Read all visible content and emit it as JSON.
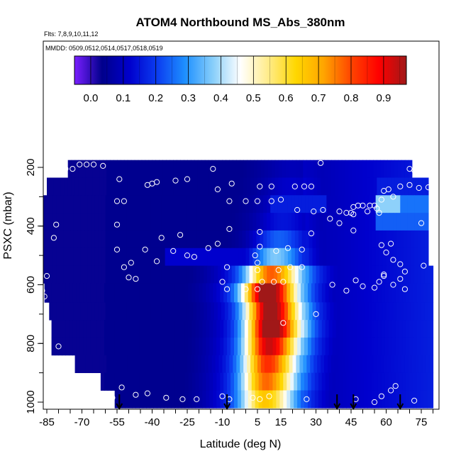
{
  "chart_data": {
    "type": "heatmap",
    "title": "ATOM4 Northbound MS_Abs_380nm",
    "flights_label": "Flts: 7,8,9,10,11,12",
    "dates_label": "MMDD: 0509,0512,0514,0517,0518,0519",
    "xlabel": "Latitude (deg N)",
    "ylabel": "PSXC (mbar)",
    "x_ticks": [
      "-85",
      "-70",
      "-55",
      "-40",
      "-25",
      "-10",
      "5",
      "15",
      "30",
      "45",
      "60",
      "75"
    ],
    "x_tick_values": [
      -85,
      -70,
      -55,
      -40,
      -25,
      -10,
      5,
      15,
      30,
      45,
      60,
      75
    ],
    "y_ticks": [
      "200",
      "400",
      "600",
      "800",
      "1000"
    ],
    "y_tick_values": [
      200,
      400,
      600,
      800,
      1000
    ],
    "xlim": [
      -86,
      81
    ],
    "ylim": [
      1020,
      100
    ],
    "colorbar": {
      "ticks": [
        "0.0",
        "0.1",
        "0.2",
        "0.3",
        "0.4",
        "0.5",
        "0.6",
        "0.7",
        "0.8",
        "0.9"
      ],
      "tick_values": [
        0.0,
        0.1,
        0.2,
        0.3,
        0.4,
        0.5,
        0.6,
        0.7,
        0.8,
        0.9
      ],
      "range": [
        -0.05,
        0.97
      ],
      "colors": [
        "#7a1fff",
        "#00008b",
        "#0000cd",
        "#0b3df0",
        "#1e90ff",
        "#87cefa",
        "#ffffff",
        "#ffec8b",
        "#ffd700",
        "#ffa500",
        "#ff4500",
        "#ff0000",
        "#a01818"
      ]
    },
    "pressure_bands": [
      {
        "p_top": 175,
        "p_bot": 235,
        "lat_min": -76,
        "lat_max": 71
      },
      {
        "p_top": 235,
        "p_bot": 295,
        "lat_min": -85,
        "lat_max": 78
      },
      {
        "p_top": 295,
        "p_bot": 355,
        "lat_min": -87,
        "lat_max": 78
      },
      {
        "p_top": 355,
        "p_bot": 415,
        "lat_min": -87,
        "lat_max": 78
      },
      {
        "p_top": 415,
        "p_bot": 475,
        "lat_min": -87,
        "lat_max": 78
      },
      {
        "p_top": 475,
        "p_bot": 535,
        "lat_min": -87,
        "lat_max": 78
      },
      {
        "p_top": 535,
        "p_bot": 595,
        "lat_min": -87,
        "lat_max": 80
      },
      {
        "p_top": 595,
        "p_bot": 660,
        "lat_min": -86,
        "lat_max": 80
      },
      {
        "p_top": 660,
        "p_bot": 720,
        "lat_min": -84,
        "lat_max": 80
      },
      {
        "p_top": 720,
        "p_bot": 780,
        "lat_min": -83,
        "lat_max": 80
      },
      {
        "p_top": 780,
        "p_bot": 840,
        "lat_min": -83,
        "lat_max": 80
      },
      {
        "p_top": 840,
        "p_bot": 900,
        "lat_min": -73,
        "lat_max": 80
      },
      {
        "p_top": 900,
        "p_bot": 960,
        "lat_min": -62,
        "lat_max": 80
      },
      {
        "p_top": 960,
        "p_bot": 1020,
        "lat_min": -56,
        "lat_max": 80
      }
    ],
    "plume": {
      "center_lat": [
        [
          200,
          20
        ],
        [
          300,
          18
        ],
        [
          450,
          14
        ],
        [
          560,
          11
        ],
        [
          620,
          9
        ],
        [
          720,
          11
        ],
        [
          800,
          10
        ],
        [
          900,
          9
        ],
        [
          1000,
          8
        ]
      ],
      "peak_value": [
        [
          200,
          0.02
        ],
        [
          300,
          0.06
        ],
        [
          400,
          0.08
        ],
        [
          500,
          0.28
        ],
        [
          560,
          0.5
        ],
        [
          600,
          0.82
        ],
        [
          650,
          0.78
        ],
        [
          700,
          0.76
        ],
        [
          750,
          0.8
        ],
        [
          800,
          0.72
        ],
        [
          850,
          0.6
        ],
        [
          900,
          0.58
        ],
        [
          950,
          0.5
        ],
        [
          1000,
          0.4
        ]
      ]
    },
    "bright_patches": [
      {
        "p_top": 295,
        "p_bot": 355,
        "lat_min": 56,
        "lat_max": 66,
        "value": 0.38
      },
      {
        "p_top": 295,
        "p_bot": 355,
        "lat_min": 66,
        "lat_max": 79,
        "value": 0.26
      },
      {
        "p_top": 355,
        "p_bot": 415,
        "lat_min": 56,
        "lat_max": 79,
        "value": 0.24
      },
      {
        "p_top": 235,
        "p_bot": 295,
        "lat_min": 56,
        "lat_max": 78,
        "value": 0.16
      },
      {
        "p_top": 475,
        "p_bot": 535,
        "lat_min": -35,
        "lat_max": 10,
        "value": 0.12
      },
      {
        "p_top": 295,
        "p_bot": 355,
        "lat_min": 10,
        "lat_max": 35,
        "value": 0.16
      }
    ],
    "sample_points": [
      [
        -71,
        190
      ],
      [
        -68,
        190
      ],
      [
        -65,
        190
      ],
      [
        -61,
        195
      ],
      [
        -74,
        205
      ],
      [
        -77,
        205
      ],
      [
        -86,
        215
      ],
      [
        -84,
        215
      ],
      [
        -54,
        240
      ],
      [
        -40,
        255
      ],
      [
        -38,
        250
      ],
      [
        -30,
        245
      ],
      [
        -14,
        205
      ],
      [
        -25,
        240
      ],
      [
        -42,
        260
      ],
      [
        32,
        185
      ],
      [
        70,
        205
      ],
      [
        72,
        210
      ],
      [
        75,
        215
      ],
      [
        -12,
        275
      ],
      [
        -6,
        255
      ],
      [
        6,
        265
      ],
      [
        11,
        265
      ],
      [
        21,
        265
      ],
      [
        25,
        265
      ],
      [
        28,
        265
      ],
      [
        66,
        265
      ],
      [
        70,
        260
      ],
      [
        74,
        270
      ],
      [
        78,
        268
      ],
      [
        59,
        280
      ],
      [
        61,
        275
      ],
      [
        -52,
        315
      ],
      [
        -55,
        315
      ],
      [
        -7,
        315
      ],
      [
        0,
        315
      ],
      [
        5,
        315
      ],
      [
        11,
        315
      ],
      [
        15,
        310
      ],
      [
        -7,
        410
      ],
      [
        22,
        345
      ],
      [
        29,
        350
      ],
      [
        33,
        345
      ],
      [
        40,
        350
      ],
      [
        43,
        355
      ],
      [
        45,
        355
      ],
      [
        46,
        335
      ],
      [
        48,
        330
      ],
      [
        50,
        330
      ],
      [
        53,
        330
      ],
      [
        55,
        330
      ],
      [
        52,
        350
      ],
      [
        56,
        340
      ],
      [
        57,
        355
      ],
      [
        40,
        390
      ],
      [
        36,
        375
      ],
      [
        46,
        360
      ],
      [
        58,
        310
      ],
      [
        63,
        300
      ],
      [
        75,
        390
      ],
      [
        -81,
        395
      ],
      [
        -82,
        440
      ],
      [
        -55,
        395
      ],
      [
        -36,
        440
      ],
      [
        -28,
        430
      ],
      [
        -38,
        520
      ],
      [
        -43,
        480
      ],
      [
        -31,
        485
      ],
      [
        -22,
        505
      ],
      [
        -25,
        500
      ],
      [
        -16,
        475
      ],
      [
        -12,
        460
      ],
      [
        -8,
        540
      ],
      [
        -55,
        480
      ],
      [
        -49,
        525
      ],
      [
        -47,
        580
      ],
      [
        -50,
        575
      ],
      [
        -52,
        540
      ],
      [
        6,
        420
      ],
      [
        28,
        425
      ],
      [
        46,
        415
      ],
      [
        6,
        470
      ],
      [
        4,
        500
      ],
      [
        13,
        485
      ],
      [
        18,
        475
      ],
      [
        24,
        480
      ],
      [
        5,
        525
      ],
      [
        5,
        550
      ],
      [
        19,
        540
      ],
      [
        14,
        550
      ],
      [
        24,
        540
      ],
      [
        58,
        465
      ],
      [
        62,
        460
      ],
      [
        60,
        490
      ],
      [
        63,
        515
      ],
      [
        66,
        530
      ],
      [
        76,
        535
      ],
      [
        68,
        555
      ],
      [
        59,
        565
      ],
      [
        59,
        570
      ],
      [
        66,
        580
      ],
      [
        -10,
        590
      ],
      [
        -8,
        615
      ],
      [
        0,
        615
      ],
      [
        5,
        615
      ],
      [
        7,
        590
      ],
      [
        12,
        590
      ],
      [
        16,
        590
      ],
      [
        37,
        600
      ],
      [
        43,
        620
      ],
      [
        47,
        585
      ],
      [
        50,
        605
      ],
      [
        55,
        610
      ],
      [
        57,
        590
      ],
      [
        63,
        600
      ],
      [
        68,
        615
      ],
      [
        -87,
        620
      ],
      [
        30,
        700
      ],
      [
        16,
        730
      ],
      [
        -80,
        810
      ],
      [
        -53,
        950
      ],
      [
        -57,
        985
      ],
      [
        -47,
        975
      ],
      [
        -42,
        970
      ],
      [
        -34,
        985
      ],
      [
        -27,
        990
      ],
      [
        -21,
        990
      ],
      [
        -10,
        980
      ],
      [
        -7,
        990
      ],
      [
        3,
        985
      ],
      [
        6,
        990
      ],
      [
        10,
        980
      ],
      [
        26,
        990
      ],
      [
        47,
        990
      ],
      [
        55,
        1000
      ],
      [
        58,
        980
      ],
      [
        62,
        960
      ],
      [
        64,
        945
      ],
      [
        72,
        995
      ],
      [
        -85,
        570
      ],
      [
        -86,
        640
      ]
    ],
    "arrow_latitudes": [
      -54,
      -8,
      39,
      46,
      66
    ]
  }
}
